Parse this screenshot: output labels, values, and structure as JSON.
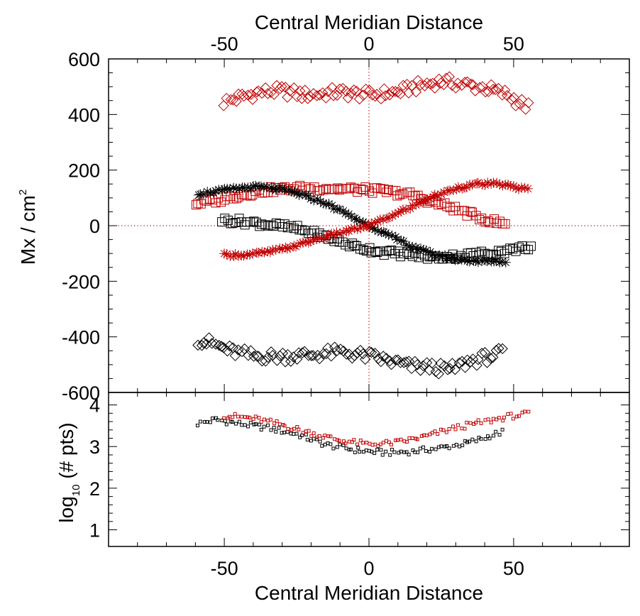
{
  "colors": {
    "black": "#000000",
    "red": "#c00000",
    "frame": "#000000",
    "zero_line": "#c00000"
  },
  "chart_data": [
    {
      "type": "scatter",
      "panel": "top",
      "xlabel_top": "Central Meridian Distance",
      "ylabel": "Mx / cm",
      "ylabel_sup": "2",
      "xlim": [
        -90,
        90
      ],
      "ylim": [
        -600,
        600
      ],
      "xticks_top": [
        -50,
        0,
        50
      ],
      "yticks": [
        -600,
        -400,
        -200,
        0,
        200,
        400,
        600
      ],
      "reference_lines": {
        "x": 0,
        "y": 0
      },
      "series": [
        {
          "marker": "diamond",
          "color": "red",
          "x_range": [
            -50,
            55
          ],
          "step": 1,
          "anchors": [
            [
              -50,
              445
            ],
            [
              -45,
              460
            ],
            [
              -38,
              480
            ],
            [
              -30,
              485
            ],
            [
              -22,
              470
            ],
            [
              -10,
              480
            ],
            [
              0,
              470
            ],
            [
              10,
              480
            ],
            [
              18,
              505
            ],
            [
              25,
              520
            ],
            [
              32,
              510
            ],
            [
              40,
              495
            ],
            [
              48,
              470
            ],
            [
              55,
              425
            ]
          ]
        },
        {
          "marker": "diamond",
          "color": "black",
          "x_range": [
            -59,
            46
          ],
          "step": 1,
          "anchors": [
            [
              -59,
              -410
            ],
            [
              -54,
              -425
            ],
            [
              -48,
              -450
            ],
            [
              -40,
              -470
            ],
            [
              -30,
              -470
            ],
            [
              -20,
              -465
            ],
            [
              -10,
              -455
            ],
            [
              0,
              -470
            ],
            [
              8,
              -490
            ],
            [
              14,
              -505
            ],
            [
              22,
              -510
            ],
            [
              28,
              -520
            ],
            [
              34,
              -490
            ],
            [
              40,
              -475
            ],
            [
              46,
              -460
            ]
          ]
        },
        {
          "marker": "square",
          "color": "red",
          "x_range": [
            -60,
            47
          ],
          "step": 1,
          "anchors": [
            [
              -60,
              80
            ],
            [
              -52,
              92
            ],
            [
              -45,
              110
            ],
            [
              -35,
              128
            ],
            [
              -25,
              135
            ],
            [
              -15,
              135
            ],
            [
              -5,
              130
            ],
            [
              5,
              125
            ],
            [
              15,
              110
            ],
            [
              22,
              85
            ],
            [
              30,
              60
            ],
            [
              38,
              30
            ],
            [
              44,
              12
            ],
            [
              47,
              5
            ]
          ]
        },
        {
          "marker": "square",
          "color": "black",
          "x_range": [
            -51,
            56
          ],
          "step": 1,
          "anchors": [
            [
              -51,
              20
            ],
            [
              -44,
              15
            ],
            [
              -35,
              5
            ],
            [
              -25,
              -10
            ],
            [
              -15,
              -40
            ],
            [
              -5,
              -75
            ],
            [
              5,
              -95
            ],
            [
              15,
              -105
            ],
            [
              22,
              -115
            ],
            [
              30,
              -110
            ],
            [
              40,
              -100
            ],
            [
              48,
              -90
            ],
            [
              56,
              -75
            ]
          ]
        },
        {
          "marker": "asterisk",
          "color": "black",
          "x_range": [
            -59,
            47
          ],
          "step": 1,
          "anchors": [
            [
              -59,
              115
            ],
            [
              -52,
              125
            ],
            [
              -45,
              135
            ],
            [
              -38,
              140
            ],
            [
              -30,
              130
            ],
            [
              -23,
              110
            ],
            [
              -15,
              80
            ],
            [
              -8,
              45
            ],
            [
              0,
              0
            ],
            [
              8,
              -40
            ],
            [
              15,
              -75
            ],
            [
              23,
              -105
            ],
            [
              30,
              -120
            ],
            [
              38,
              -128
            ],
            [
              47,
              -130
            ]
          ]
        },
        {
          "marker": "asterisk",
          "color": "red",
          "x_range": [
            -50,
            55
          ],
          "step": 1,
          "anchors": [
            [
              -50,
              -105
            ],
            [
              -42,
              -105
            ],
            [
              -35,
              -95
            ],
            [
              -28,
              -80
            ],
            [
              -20,
              -55
            ],
            [
              -10,
              -25
            ],
            [
              0,
              0
            ],
            [
              10,
              45
            ],
            [
              20,
              95
            ],
            [
              30,
              135
            ],
            [
              38,
              150
            ],
            [
              45,
              150
            ],
            [
              55,
              130
            ]
          ]
        }
      ]
    },
    {
      "type": "scatter",
      "panel": "bottom",
      "xlabel": "Central Meridian Distance",
      "ylabel": "log",
      "ylabel_sub": "10",
      "ylabel_rest": " (# pts)",
      "xlim": [
        -90,
        90
      ],
      "ylim": [
        0.6,
        4.3
      ],
      "xticks": [
        -50,
        0,
        50
      ],
      "yticks": [
        1,
        2,
        3,
        4
      ],
      "series": [
        {
          "marker": "small-square",
          "color": "black",
          "x_range": [
            -59,
            46
          ],
          "step": 1,
          "anchors": [
            [
              -59,
              3.55
            ],
            [
              -53,
              3.65
            ],
            [
              -45,
              3.55
            ],
            [
              -35,
              3.45
            ],
            [
              -25,
              3.3
            ],
            [
              -15,
              3.05
            ],
            [
              -5,
              2.92
            ],
            [
              5,
              2.85
            ],
            [
              15,
              2.88
            ],
            [
              25,
              2.97
            ],
            [
              35,
              3.1
            ],
            [
              46,
              3.35
            ]
          ]
        },
        {
          "marker": "small-square",
          "color": "red",
          "x_range": [
            -50,
            55
          ],
          "step": 1,
          "anchors": [
            [
              -50,
              3.75
            ],
            [
              -40,
              3.68
            ],
            [
              -30,
              3.52
            ],
            [
              -20,
              3.32
            ],
            [
              -10,
              3.15
            ],
            [
              0,
              3.05
            ],
            [
              10,
              3.1
            ],
            [
              20,
              3.25
            ],
            [
              30,
              3.45
            ],
            [
              40,
              3.6
            ],
            [
              48,
              3.72
            ],
            [
              55,
              3.78
            ]
          ]
        }
      ]
    }
  ]
}
